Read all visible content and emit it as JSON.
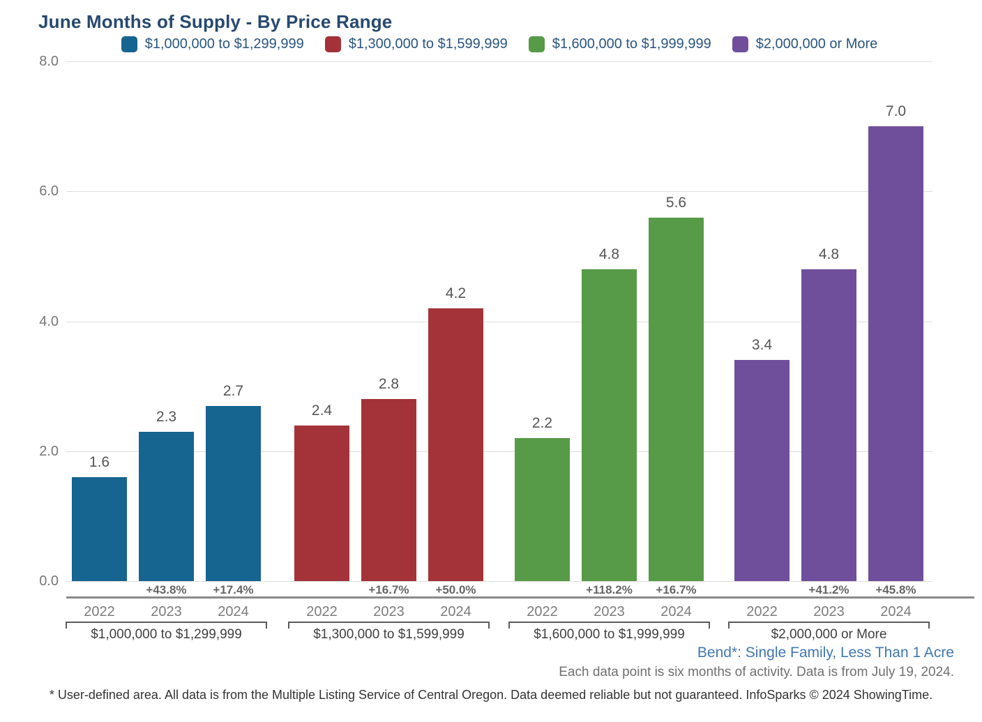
{
  "page": {
    "title": "June Months of Supply - By Price Range",
    "footer": {
      "area_label": "Bend*: Single Family, Less Than 1 Acre",
      "data_note": "Each data point is six months of activity. Data is from July 19, 2024.",
      "disclaimer": "* User-defined area. All data is from the Multiple Listing Service of Central Oregon. Data deemed reliable but not guaranteed. InfoSparks © 2024 ShowingTime."
    }
  },
  "colors": {
    "title_text": "#27496e",
    "legend_text": "#2a5580",
    "grid": "#dddddd",
    "axis_text": "#777777",
    "value_text": "#555555",
    "percent_text": "#666666",
    "year_text": "#7c7c7c",
    "group_label_text": "#3f3f3f",
    "area_label_text": "#4077b0",
    "baseline_rule": "#8a8a8a"
  },
  "chart_data": {
    "type": "bar",
    "title": "June Months of Supply - By Price Range",
    "xlabel": "",
    "ylabel": "",
    "ylim": [
      0,
      8
    ],
    "yticks": [
      0,
      2,
      4,
      6,
      8
    ],
    "ytick_labels": [
      "0.0",
      "2.0",
      "4.0",
      "6.0",
      "8.0"
    ],
    "grid": true,
    "legend_position": "top",
    "categories": [
      "2022",
      "2023",
      "2024"
    ],
    "series": [
      {
        "name": "$1,000,000 to $1,299,999",
        "color": "#166490",
        "values": [
          1.6,
          2.3,
          2.7
        ],
        "value_labels": [
          "1.6",
          "2.3",
          "2.7"
        ],
        "pct_change": [
          "",
          "+43.8%",
          "+17.4%"
        ]
      },
      {
        "name": "$1,300,000 to $1,599,999",
        "color": "#a33338",
        "values": [
          2.4,
          2.8,
          4.2
        ],
        "value_labels": [
          "2.4",
          "2.8",
          "4.2"
        ],
        "pct_change": [
          "",
          "+16.7%",
          "+50.0%"
        ]
      },
      {
        "name": "$1,600,000 to $1,999,999",
        "color": "#579a47",
        "values": [
          2.2,
          4.8,
          5.6
        ],
        "value_labels": [
          "2.2",
          "4.8",
          "5.6"
        ],
        "pct_change": [
          "",
          "+118.2%",
          "+16.7%"
        ]
      },
      {
        "name": "$2,000,000 or More",
        "color": "#6f4f9c",
        "values": [
          3.4,
          4.8,
          7.0
        ],
        "value_labels": [
          "3.4",
          "4.8",
          "7.0"
        ],
        "pct_change": [
          "",
          "+41.2%",
          "+45.8%"
        ]
      }
    ]
  }
}
